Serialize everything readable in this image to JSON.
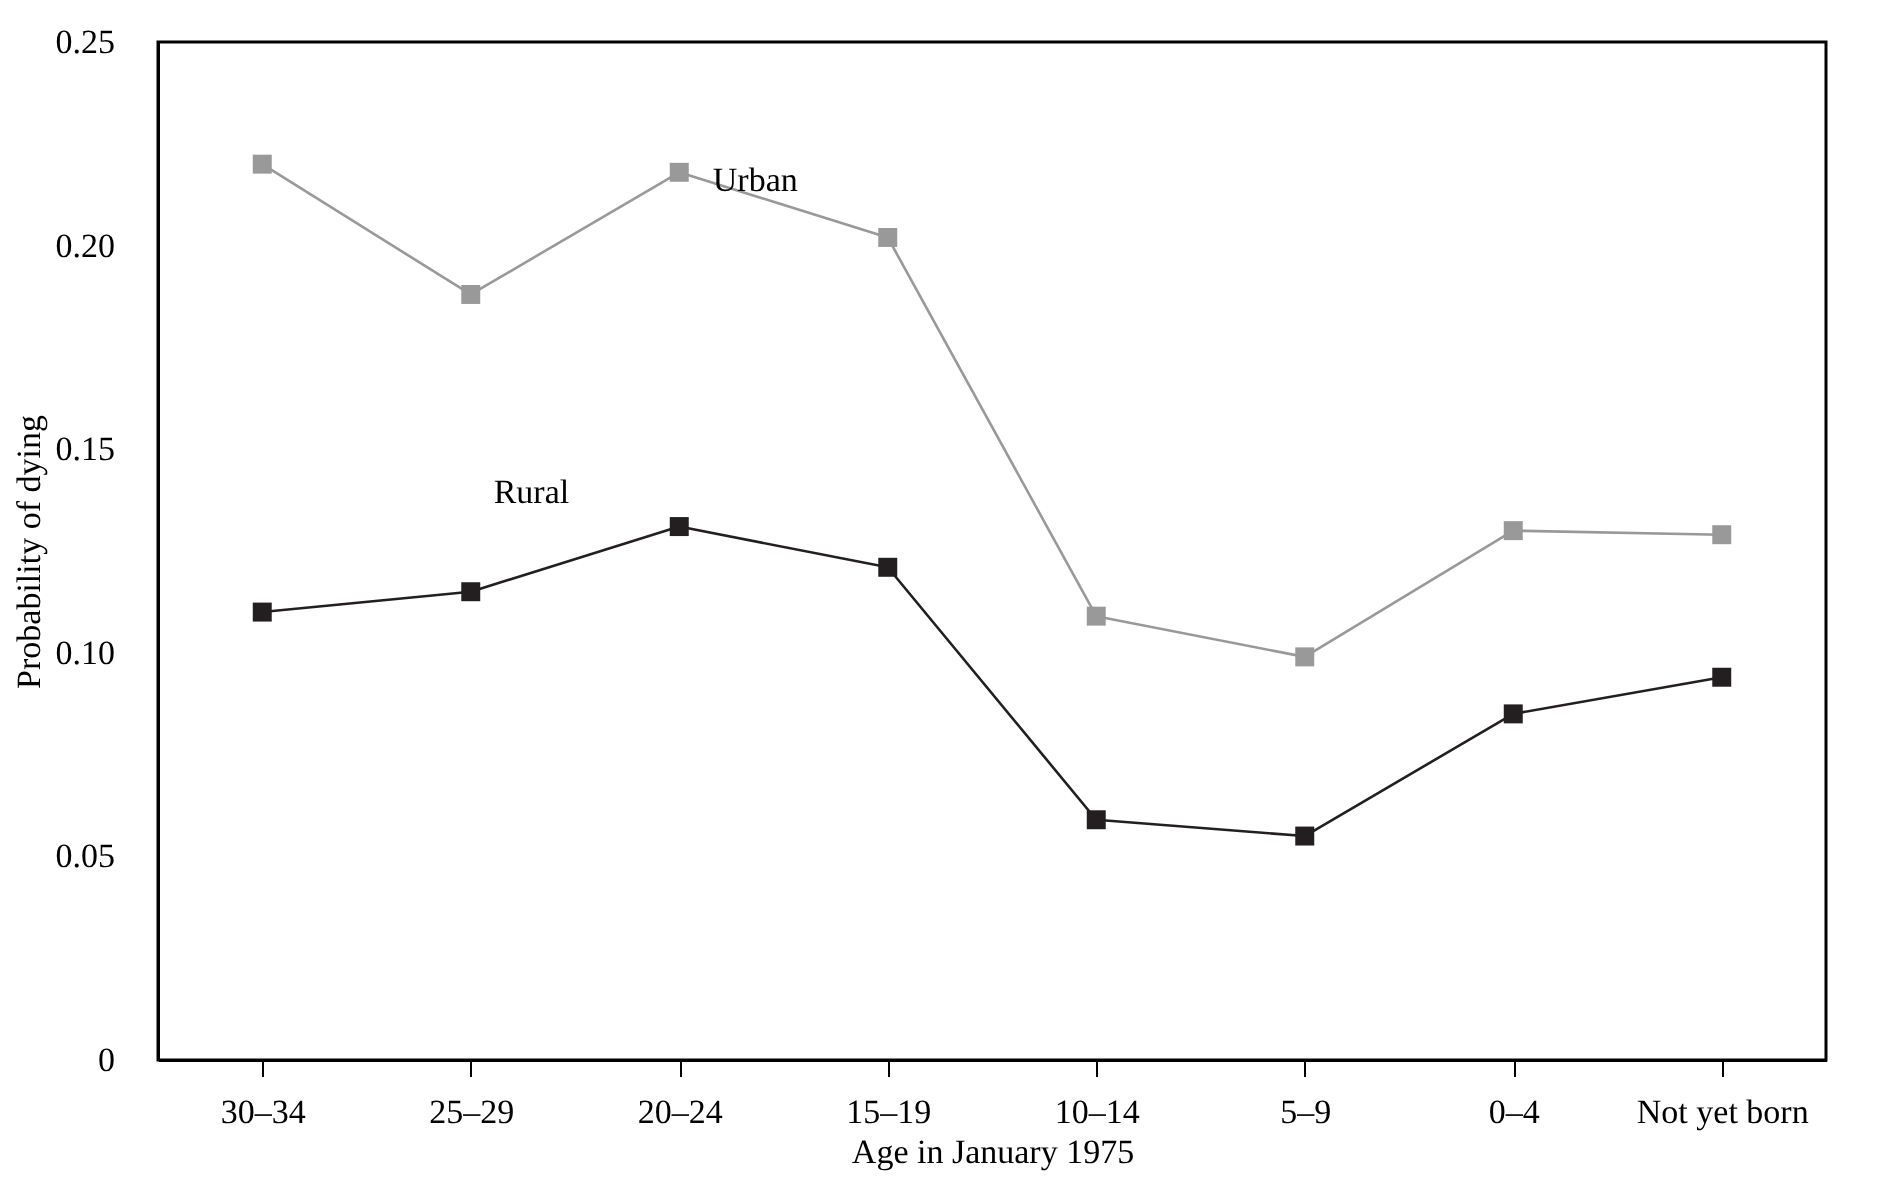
{
  "chart_data": {
    "type": "line",
    "xlabel": "Age in January 1975",
    "ylabel": "Probability of dying",
    "categories": [
      "30–34",
      "25–29",
      "20–24",
      "15–19",
      "10–14",
      "5–9",
      "0–4",
      "Not yet born"
    ],
    "series": [
      {
        "name": "Urban",
        "color": "#999999",
        "values": [
          0.22,
          0.188,
          0.218,
          0.202,
          0.109,
          0.099,
          0.13,
          0.129
        ]
      },
      {
        "name": "Rural",
        "color": "#231f20",
        "values": [
          0.11,
          0.115,
          0.131,
          0.121,
          0.059,
          0.055,
          0.085,
          0.094
        ]
      }
    ],
    "ylim": [
      0,
      0.25
    ],
    "yticks": [
      {
        "value": 0,
        "label": "0"
      },
      {
        "value": 0.05,
        "label": "0.05"
      },
      {
        "value": 0.1,
        "label": "0.10"
      },
      {
        "value": 0.15,
        "label": "0.15"
      },
      {
        "value": 0.2,
        "label": "0.20"
      },
      {
        "value": 0.25,
        "label": "0.25"
      }
    ],
    "marker": "square",
    "line_style": "solid"
  }
}
